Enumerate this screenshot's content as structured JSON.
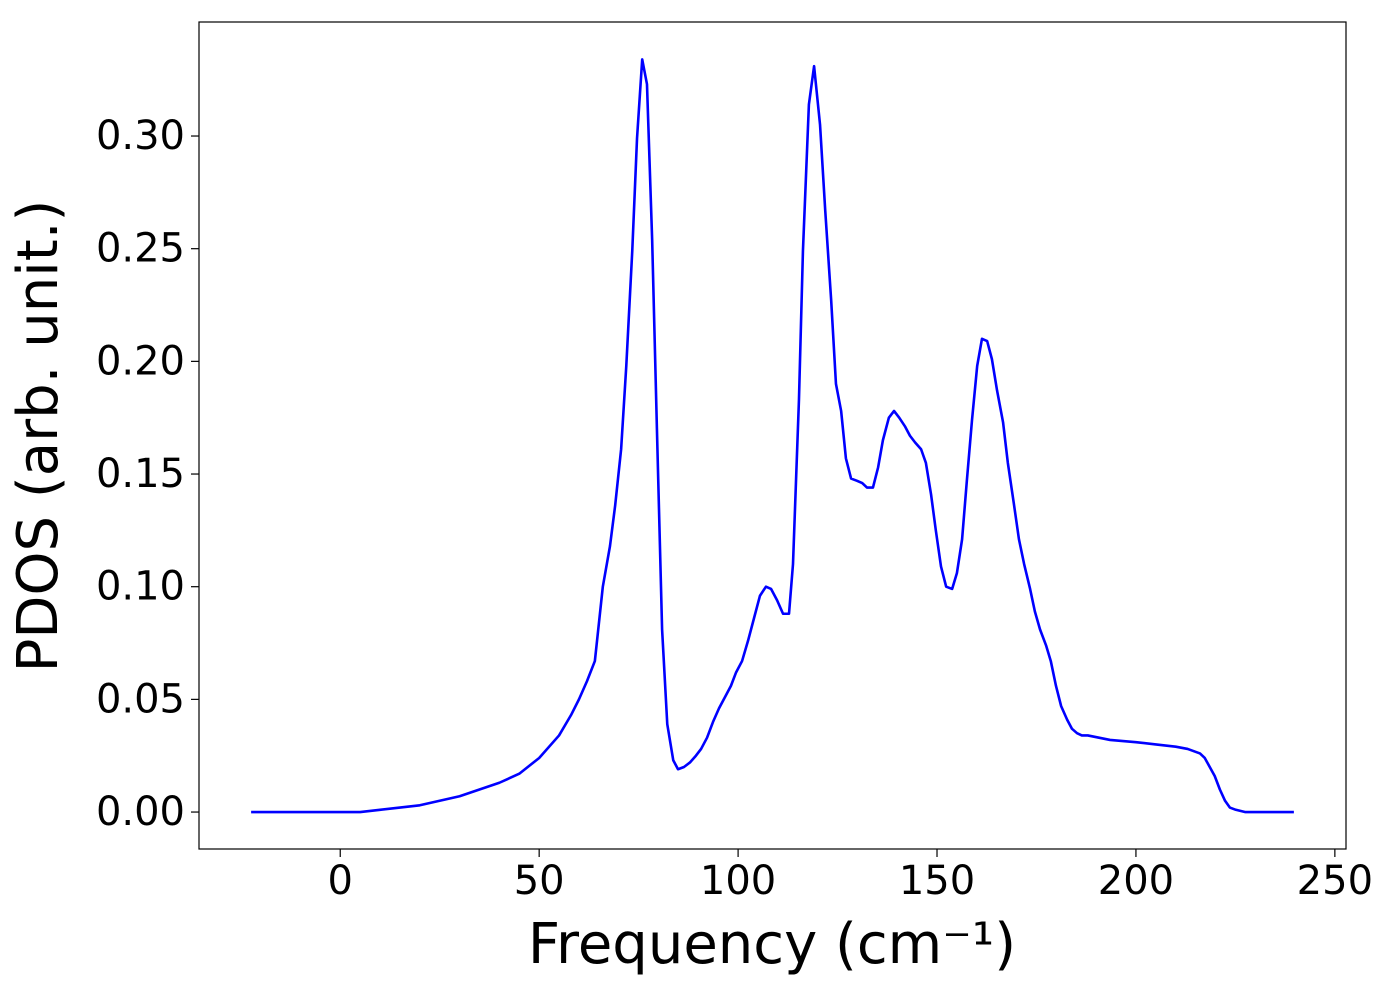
{
  "chart_data": {
    "type": "line",
    "xlabel": "Frequency (cm⁻¹)",
    "ylabel": "PDOS (arb. unit.)",
    "color": "#0000ff",
    "x": [
      -22.4,
      0,
      5,
      10,
      15,
      20,
      25,
      30,
      35,
      40,
      45,
      50,
      55,
      58,
      60,
      62,
      64,
      66,
      67.8,
      69.1,
      70.6,
      71.9,
      73.4,
      74.6,
      75.9,
      77.1,
      78.4,
      79.6,
      80.9,
      82.2,
      83.7,
      84.9,
      86.4,
      87.9,
      89.4,
      90.7,
      92.2,
      93.7,
      95.2,
      96.7,
      98.2,
      99.5,
      101.0,
      102.5,
      104.0,
      105.5,
      107.0,
      108.3,
      109.8,
      111.3,
      112.8,
      113.8,
      115.3,
      116.3,
      117.8,
      119.1,
      120.6,
      121.9,
      123.4,
      124.6,
      125.9,
      127.1,
      128.4,
      129.9,
      131.2,
      132.4,
      133.9,
      135.2,
      136.4,
      137.9,
      139.2,
      140.5,
      142.0,
      143.2,
      144.5,
      146.0,
      147.2,
      148.5,
      149.7,
      151.0,
      152.3,
      153.8,
      155.0,
      156.3,
      157.5,
      158.8,
      160.1,
      161.3,
      162.6,
      163.8,
      165.1,
      166.6,
      167.8,
      169.3,
      170.6,
      171.9,
      173.4,
      174.6,
      175.9,
      177.4,
      178.6,
      179.9,
      181.2,
      182.7,
      183.9,
      185.2,
      186.4,
      187.9,
      190.7,
      193.5,
      200,
      205,
      210,
      213,
      216.1,
      217.3,
      219.8,
      221.1,
      222.4,
      223.6,
      225.1,
      227.4,
      239.7
    ],
    "values": [
      0,
      0,
      0,
      0.001,
      0.002,
      0.003,
      0.005,
      0.007,
      0.01,
      0.013,
      0.017,
      0.024,
      0.034,
      0.043,
      0.05,
      0.058,
      0.067,
      0.1,
      0.118,
      0.136,
      0.161,
      0.198,
      0.249,
      0.299,
      0.334,
      0.323,
      0.254,
      0.17,
      0.081,
      0.039,
      0.023,
      0.019,
      0.02,
      0.022,
      0.025,
      0.028,
      0.033,
      0.04,
      0.046,
      0.051,
      0.056,
      0.062,
      0.067,
      0.076,
      0.086,
      0.096,
      0.1,
      0.099,
      0.094,
      0.088,
      0.088,
      0.11,
      0.183,
      0.249,
      0.314,
      0.331,
      0.305,
      0.267,
      0.227,
      0.19,
      0.178,
      0.157,
      0.148,
      0.147,
      0.146,
      0.144,
      0.144,
      0.153,
      0.165,
      0.175,
      0.178,
      0.175,
      0.171,
      0.167,
      0.164,
      0.161,
      0.155,
      0.141,
      0.125,
      0.109,
      0.1,
      0.099,
      0.106,
      0.121,
      0.147,
      0.174,
      0.198,
      0.21,
      0.209,
      0.201,
      0.187,
      0.173,
      0.155,
      0.137,
      0.121,
      0.11,
      0.099,
      0.089,
      0.081,
      0.074,
      0.067,
      0.056,
      0.047,
      0.041,
      0.037,
      0.035,
      0.034,
      0.034,
      0.033,
      0.032,
      0.031,
      0.03,
      0.029,
      0.028,
      0.026,
      0.024,
      0.016,
      0.01,
      0.005,
      0.002,
      0.001,
      0,
      0
    ],
    "xlim": [
      -35.5,
      252.8
    ],
    "ylim": [
      -0.0164,
      0.3506
    ],
    "xticks": [
      0,
      50,
      100,
      150,
      200,
      250
    ],
    "yticks": [
      {
        "value": 0,
        "label": "0.00"
      },
      0.05,
      {
        "value": 0.1,
        "label": "0.10"
      },
      0.15,
      {
        "value": 0.2,
        "label": "0.20"
      },
      0.25,
      {
        "value": 0.3,
        "label": "0.30"
      }
    ]
  }
}
